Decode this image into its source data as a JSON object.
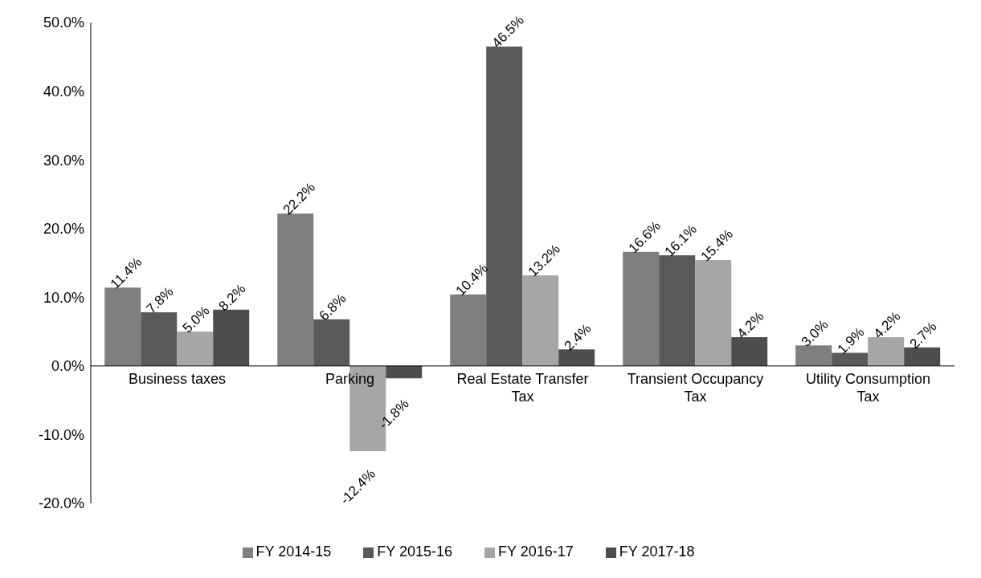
{
  "chart_data": {
    "type": "bar",
    "categories": [
      "Business taxes",
      "Parking",
      "Real Estate Transfer Tax",
      "Transient Occupancy Tax",
      "Utility Consumption Tax"
    ],
    "series": [
      {
        "name": "FY 2014-15",
        "color": "#7f7f7f",
        "values": [
          11.4,
          22.2,
          10.4,
          16.6,
          3.0
        ],
        "value_labels": [
          "11.4%",
          "22.2%",
          "10.4%",
          "16.6%",
          "3.0%"
        ]
      },
      {
        "name": "FY 2015-16",
        "color": "#595959",
        "values": [
          7.8,
          6.8,
          46.5,
          16.1,
          1.9
        ],
        "value_labels": [
          "7.8%",
          "6.8%",
          "46.5%",
          "16.1%",
          "1.9%"
        ]
      },
      {
        "name": "FY 2016-17",
        "color": "#a6a6a6",
        "values": [
          5.0,
          -12.4,
          13.2,
          15.4,
          4.2
        ],
        "value_labels": [
          "5.0%",
          "-12.4%",
          "13.2%",
          "15.4%",
          "4.2%"
        ]
      },
      {
        "name": "FY 2017-18",
        "color": "#4d4d4d",
        "values": [
          8.2,
          -1.8,
          2.4,
          4.2,
          2.7
        ],
        "value_labels": [
          "8.2%",
          "-1.8%",
          "2.4%",
          "4.2%",
          "2.7%"
        ]
      }
    ],
    "ylim": [
      -20,
      50
    ],
    "yticks": [
      {
        "value": -20,
        "label": "-20.0%"
      },
      {
        "value": -10,
        "label": "-10.0%"
      },
      {
        "value": 0,
        "label": "0.0%"
      },
      {
        "value": 10,
        "label": "10.0%"
      },
      {
        "value": 20,
        "label": "20.0%"
      },
      {
        "value": 30,
        "label": "30.0%"
      },
      {
        "value": 40,
        "label": "40.0%"
      },
      {
        "value": 50,
        "label": "50.0%"
      }
    ],
    "grid": false,
    "legend": "bottom"
  }
}
